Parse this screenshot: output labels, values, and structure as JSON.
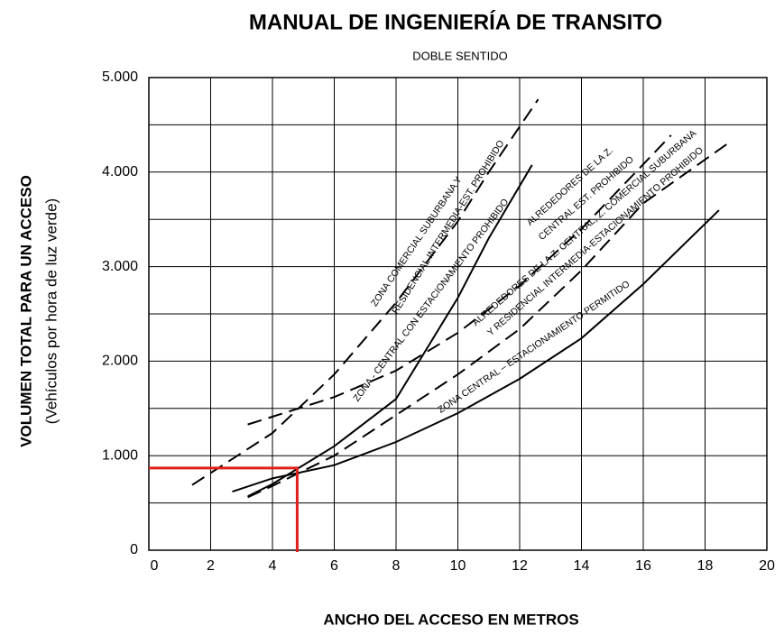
{
  "chart_data": {
    "type": "line",
    "title": "MANUAL DE INGENIERÍA DE TRANSITO",
    "subtitle": "DOBLE SENTIDO",
    "xlabel": "ANCHO DEL ACCESO EN  METROS",
    "ylabel": "VOLUMEN TOTAL PARA UN ACCESO",
    "ylabel_note": "(Vehículos por hora de luz verde)",
    "xlim": [
      0,
      20
    ],
    "ylim": [
      0,
      5000
    ],
    "xticks": [
      0,
      2,
      4,
      6,
      8,
      10,
      12,
      14,
      16,
      18,
      20
    ],
    "yticks": [
      0,
      {
        "value": 1000,
        "label": "1.000"
      },
      {
        "value": 2000,
        "label": "2.000"
      },
      {
        "value": 3000,
        "label": "3.000"
      },
      {
        "value": 4000,
        "label": "4.000"
      },
      {
        "value": 5000,
        "label": "5.000"
      }
    ],
    "yminorticks": [
      500,
      1500,
      2500,
      3500,
      4500
    ],
    "grid": true,
    "series": [
      {
        "x": [
          2.7,
          4,
          6,
          8,
          10,
          12,
          14,
          16,
          18.45
        ],
        "values": [
          620,
          760,
          900,
          1145,
          1450,
          1813,
          2242,
          2815,
          3597
        ],
        "dashed": false,
        "color": "#000000"
      },
      {
        "x": [
          3.2,
          4,
          6,
          8,
          10,
          12,
          14,
          16,
          18.7
        ],
        "values": [
          560,
          680,
          1000,
          1430,
          1860,
          2340,
          2960,
          3670,
          4294
        ],
        "dashed": true,
        "color": "#000000"
      },
      {
        "x": [
          3.2,
          6,
          8,
          10,
          12,
          14,
          16.9
        ],
        "values": [
          1330,
          1620,
          1900,
          2300,
          2800,
          3400,
          4390
        ],
        "dashed": true,
        "color": "#000000"
      },
      {
        "x": [
          3.2,
          4,
          6,
          8,
          10,
          11,
          12.4
        ],
        "values": [
          570,
          700,
          1100,
          1600,
          2670,
          3300,
          4075
        ],
        "dashed": false,
        "color": "#000000"
      },
      {
        "x": [
          1.4,
          4,
          6,
          8,
          10,
          11,
          12.6
        ],
        "values": [
          690,
          1240,
          1860,
          2620,
          3480,
          4000,
          4770
        ],
        "dashed": true,
        "color": "#000000"
      }
    ],
    "reference": {
      "x": 4.8,
      "y": 870,
      "color": "#e0201b"
    },
    "annotations": [
      "ZONA COMERCIAL SUBURBANA  Y",
      "RESIDENCIAL INTERMEDIA-EST. PROHIBIDO",
      "ZONA - CENTRAL  CON  ESTACIONAMIENTO  PROHIBIDO",
      "ALREDEDORES  DE LA Z.",
      "CENTRAL EST. PROHIBIDO",
      "ALREDEDORES  DE LA Z. CENTRAL,  Z. COMERCIAL SUBURBANA",
      "Y RESIDENCIAL INTERMEDIA-ESTACIONAMIENTO  PROHIBIDO",
      "ZONA CENTRAL  – ESTACIONAMIENTO  PERMITIDO"
    ]
  }
}
